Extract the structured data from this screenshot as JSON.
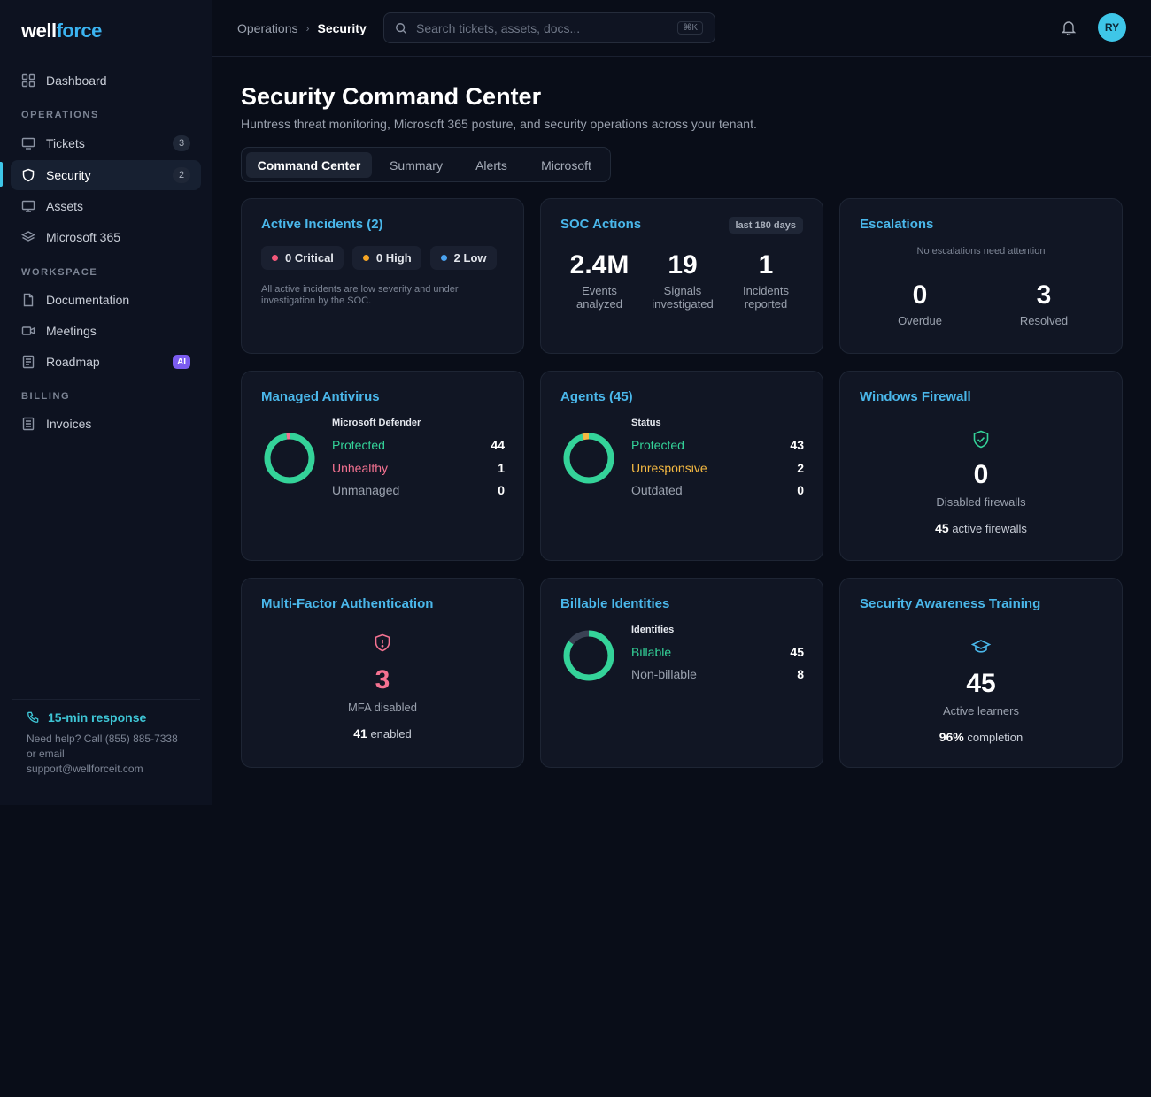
{
  "brand": {
    "part1": "well",
    "part2": "force"
  },
  "sidebar": {
    "dashboard": "Dashboard",
    "sections": {
      "operations": "OPERATIONS",
      "workspace": "WORKSPACE",
      "billing": "BILLING"
    },
    "items": {
      "tickets": {
        "label": "Tickets",
        "badge": "3"
      },
      "security": {
        "label": "Security",
        "badge": "2"
      },
      "assets": {
        "label": "Assets"
      },
      "m365": {
        "label": "Microsoft 365"
      },
      "documentation": {
        "label": "Documentation"
      },
      "meetings": {
        "label": "Meetings"
      },
      "roadmap": {
        "label": "Roadmap",
        "badge": "AI"
      },
      "invoices": {
        "label": "Invoices"
      }
    },
    "help": {
      "title": "15-min response",
      "line1": "Need help? Call (855) 885-7338",
      "line2": "or email",
      "line3": "support@wellforceit.com"
    }
  },
  "topbar": {
    "breadcrumb": [
      "Operations",
      "Security"
    ],
    "search_placeholder": "Search tickets, assets, docs...",
    "search_shortcut": "⌘K",
    "avatar": "RY"
  },
  "page": {
    "title": "Security Command Center",
    "subtitle": "Huntress threat monitoring, Microsoft 365 posture, and security operations across your tenant."
  },
  "tabs": [
    "Command Center",
    "Summary",
    "Alerts",
    "Microsoft"
  ],
  "incidents": {
    "title": "Active Incidents (2)",
    "critical": "0 Critical",
    "high": "0 High",
    "low": "2 Low",
    "note": "All active incidents are low severity and under investigation by the SOC."
  },
  "soc": {
    "title": "SOC Actions",
    "range": "last 180 days",
    "stats": [
      {
        "num": "2.4M",
        "l1": "Events",
        "l2": "analyzed"
      },
      {
        "num": "19",
        "l1": "Signals",
        "l2": "investigated"
      },
      {
        "num": "1",
        "l1": "Incidents",
        "l2": "reported"
      }
    ]
  },
  "escalations": {
    "title": "Escalations",
    "note": "No escalations need attention",
    "overdue": {
      "num": "0",
      "label": "Overdue"
    },
    "resolved": {
      "num": "3",
      "label": "Resolved"
    }
  },
  "antivirus": {
    "title": "Managed Antivirus",
    "head": "Microsoft Defender",
    "rows": [
      {
        "label": "Protected",
        "value": 44,
        "color": "#34d399"
      },
      {
        "label": "Unhealthy",
        "value": 1,
        "color": "#f47291"
      },
      {
        "label": "Unmanaged",
        "value": 0,
        "color": "#9aa1ae"
      }
    ]
  },
  "agents": {
    "title": "Agents (45)",
    "head": "Status",
    "rows": [
      {
        "label": "Protected",
        "value": 43,
        "color": "#34d399"
      },
      {
        "label": "Unresponsive",
        "value": 2,
        "color": "#f5b942"
      },
      {
        "label": "Outdated",
        "value": 0,
        "color": "#9aa1ae"
      }
    ]
  },
  "firewall": {
    "title": "Windows Firewall",
    "num": "0",
    "label": "Disabled firewalls",
    "active_num": "45",
    "active_label": "active firewalls"
  },
  "mfa": {
    "title": "Multi-Factor Authentication",
    "num": "3",
    "label": "MFA disabled",
    "enabled_num": "41",
    "enabled_label": "enabled"
  },
  "billable": {
    "title": "Billable Identities",
    "head": "Identities",
    "rows": [
      {
        "label": "Billable",
        "value": 45,
        "color": "#34d399"
      },
      {
        "label": "Non-billable",
        "value": 8,
        "color": "#3a4254"
      }
    ]
  },
  "training": {
    "title": "Security Awareness Training",
    "num": "45",
    "label": "Active learners",
    "completion_num": "96%",
    "completion_label": "completion"
  },
  "colors": {
    "accent": "#3ec6e8",
    "title": "#4ab7ea",
    "green": "#34d399",
    "red": "#f47291",
    "amber": "#f5b942"
  }
}
